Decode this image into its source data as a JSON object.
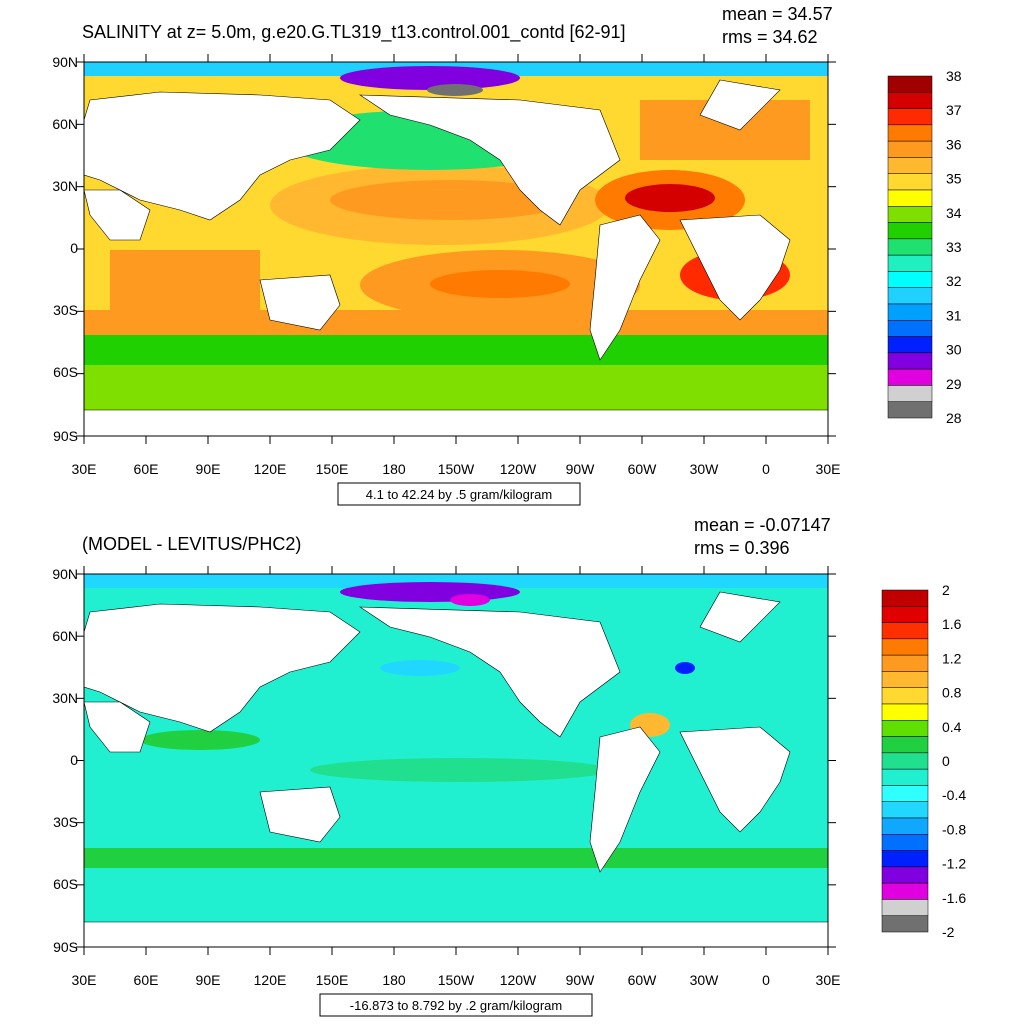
{
  "panels": [
    {
      "id": "salinity",
      "title": "SALINITY at z=   5.0m, g.e20.G.TL319_t13.control.001_contd [62-91]",
      "mean_label": "mean = 34.57",
      "rms_label": "rms = 34.62",
      "contour_info": "4.1 to 42.24 by .5 gram/kilogram",
      "colorbar_labels": [
        "38",
        "37",
        "36",
        "35",
        "34",
        "33",
        "32",
        "31",
        "30",
        "29",
        "28"
      ],
      "colorbar_colors": [
        "#a00000",
        "#d40000",
        "#ff2a00",
        "#ff7a00",
        "#ff9a20",
        "#ffb830",
        "#ffd830",
        "#ffff00",
        "#7fe000",
        "#20d000",
        "#20e070",
        "#20f0c0",
        "#00ffff",
        "#20d0ff",
        "#00a0ff",
        "#0070ff",
        "#0020ff",
        "#8000e0",
        "#e000e0",
        "#d0d0d0",
        "#707070"
      ]
    },
    {
      "id": "difference",
      "title": "(MODEL - LEVITUS/PHC2)",
      "mean_label": "mean = -0.07147",
      "rms_label": "rms = 0.396",
      "contour_info": "-16.873 to 8.792 by .2 gram/kilogram",
      "colorbar_labels": [
        "2",
        "1.6",
        "1.2",
        "0.8",
        "0.4",
        "0",
        "-0.4",
        "-0.8",
        "-1.2",
        "-1.6",
        "-2"
      ],
      "colorbar_colors": [
        "#c00000",
        "#e00000",
        "#ff3000",
        "#ff7a00",
        "#ff9a20",
        "#ffb830",
        "#ffd830",
        "#ffff00",
        "#60e000",
        "#20d040",
        "#20e090",
        "#20f0d0",
        "#30ffff",
        "#20d8ff",
        "#10a8ff",
        "#0070ff",
        "#0020ff",
        "#8000e0",
        "#e000e0",
        "#d0d0d0",
        "#707070"
      ]
    }
  ],
  "axes": {
    "lat_labels": [
      "90N",
      "60N",
      "30N",
      "0",
      "30S",
      "60S",
      "90S"
    ],
    "lon_labels": [
      "30E",
      "60E",
      "90E",
      "120E",
      "150E",
      "180",
      "150W",
      "120W",
      "90W",
      "60W",
      "30W",
      "0",
      "30E"
    ]
  }
}
